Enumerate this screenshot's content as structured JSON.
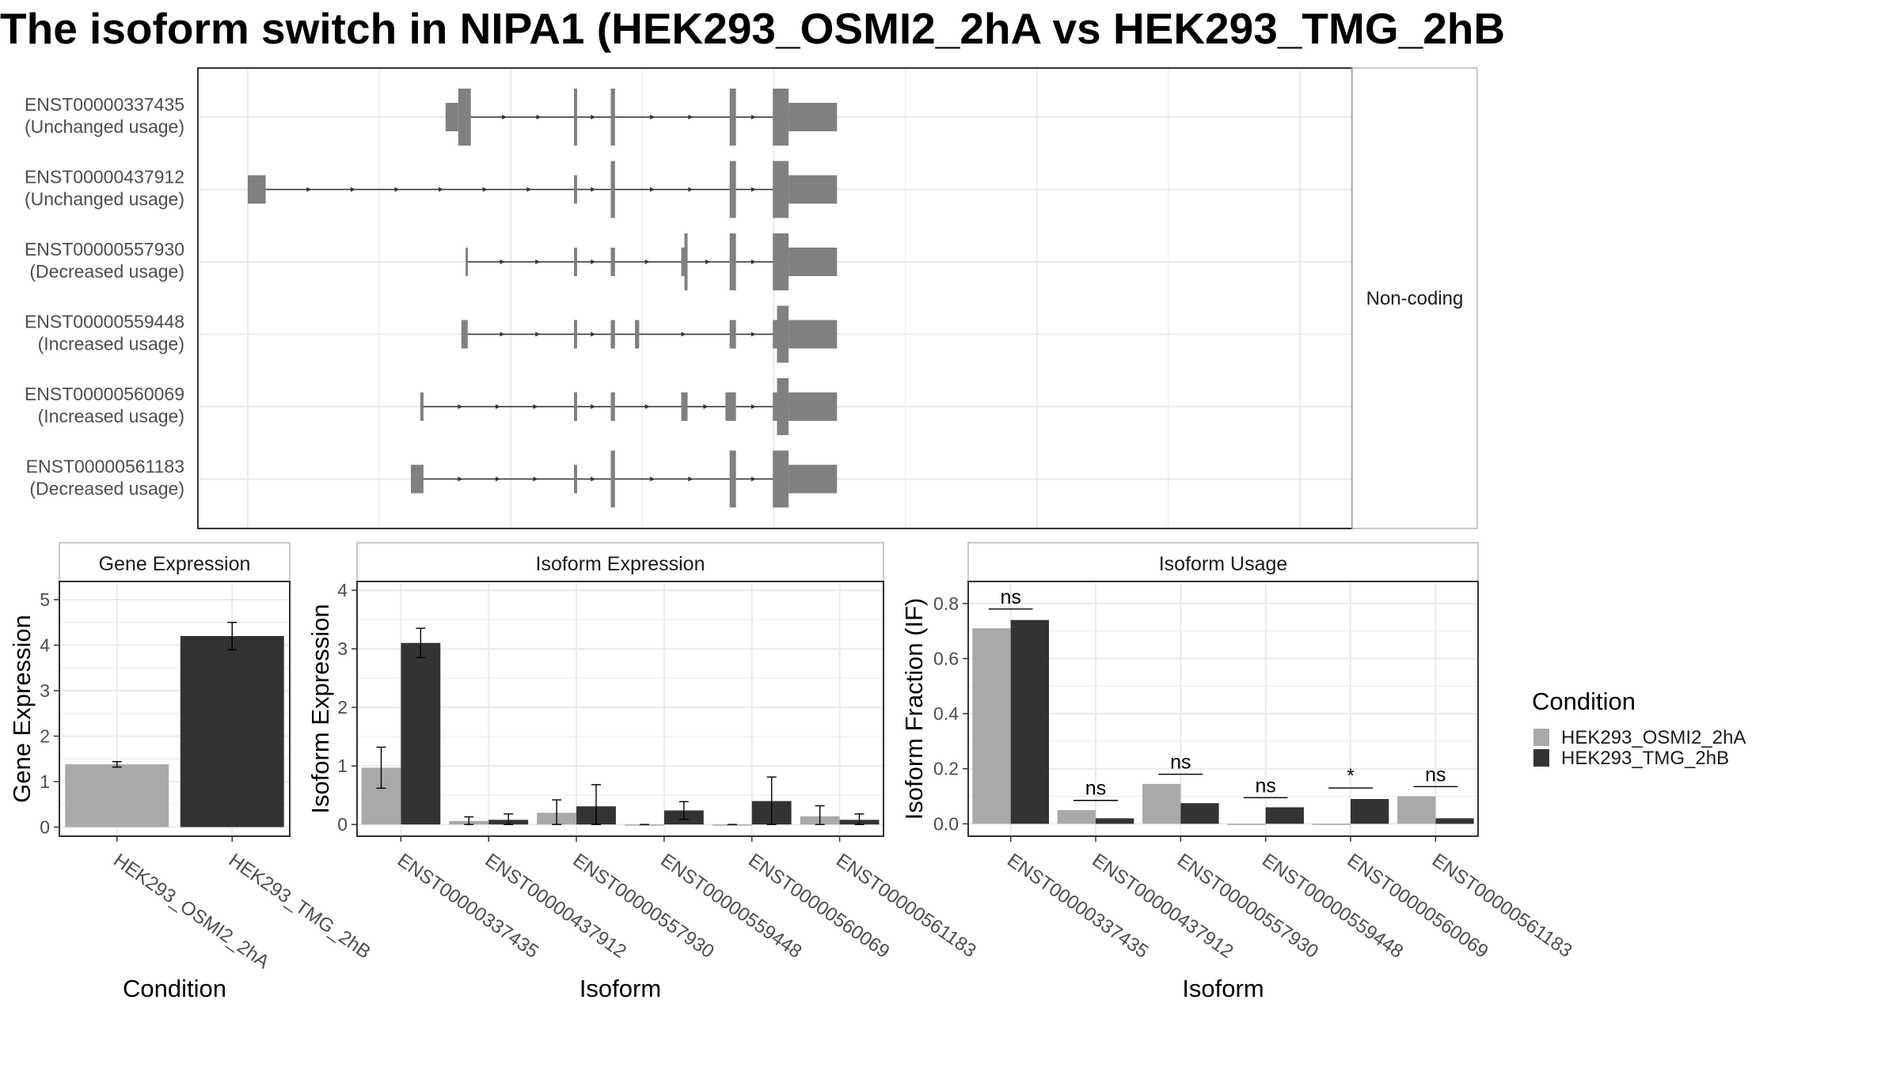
{
  "title": "The isoform switch in NIPA1 (HEK293_OSMI2_2hA vs HEK293_TMG_2hB",
  "colors": {
    "osmi": "#a9a9a9",
    "tmg": "#333333",
    "exon": "#808080",
    "grid": "#ebebeb",
    "panel_border": "#333333"
  },
  "chart_data": [
    {
      "type": "gene-structure",
      "strip_label": "Non-coding",
      "x_range": [
        0,
        1000
      ],
      "transcripts": [
        {
          "id": "ENST00000337435",
          "usage": "(Unchanged usage)",
          "exons": [
            [
              188,
              200,
              "utr"
            ],
            [
              200,
              212,
              "cds"
            ],
            [
              310,
              313,
              "cds"
            ],
            [
              345,
              349,
              "cds"
            ],
            [
              458,
              464,
              "cds"
            ],
            [
              499,
              514,
              "cds"
            ],
            [
              514,
              560,
              "utr"
            ]
          ]
        },
        {
          "id": "ENST00000437912",
          "usage": "(Unchanged usage)",
          "exons": [
            [
              0,
              17,
              "utr"
            ],
            [
              310,
              313,
              "utr"
            ],
            [
              345,
              349,
              "cds"
            ],
            [
              458,
              464,
              "cds"
            ],
            [
              499,
              514,
              "cds"
            ],
            [
              514,
              560,
              "utr"
            ]
          ]
        },
        {
          "id": "ENST00000557930",
          "usage": "(Decreased usage)",
          "exons": [
            [
              207,
              209,
              "utr"
            ],
            [
              310,
              313,
              "utr"
            ],
            [
              345,
              349,
              "utr"
            ],
            [
              412,
              415,
              "utr"
            ],
            [
              415,
              418,
              "cds"
            ],
            [
              458,
              464,
              "cds"
            ],
            [
              499,
              514,
              "cds"
            ],
            [
              514,
              560,
              "utr"
            ]
          ]
        },
        {
          "id": "ENST00000559448",
          "usage": "(Increased usage)",
          "exons": [
            [
              203,
              209,
              "utr"
            ],
            [
              310,
              313,
              "utr"
            ],
            [
              345,
              349,
              "utr"
            ],
            [
              368,
              372,
              "utr"
            ],
            [
              458,
              464,
              "utr"
            ],
            [
              499,
              503,
              "utr"
            ],
            [
              503,
              514,
              "cds"
            ],
            [
              514,
              560,
              "utr"
            ]
          ]
        },
        {
          "id": "ENST00000560069",
          "usage": "(Increased usage)",
          "exons": [
            [
              164,
              167,
              "utr"
            ],
            [
              310,
              313,
              "utr"
            ],
            [
              345,
              349,
              "utr"
            ],
            [
              412,
              418,
              "utr"
            ],
            [
              454,
              459,
              "utr"
            ],
            [
              458,
              464,
              "utr"
            ],
            [
              499,
              503,
              "utr"
            ],
            [
              503,
              514,
              "cds"
            ],
            [
              514,
              560,
              "utr"
            ]
          ]
        },
        {
          "id": "ENST00000561183",
          "usage": "(Decreased usage)",
          "exons": [
            [
              155,
              167,
              "utr"
            ],
            [
              310,
              313,
              "utr"
            ],
            [
              345,
              349,
              "cds"
            ],
            [
              458,
              464,
              "cds"
            ],
            [
              499,
              514,
              "cds"
            ],
            [
              514,
              560,
              "utr"
            ]
          ]
        }
      ]
    },
    {
      "type": "bar",
      "strip_label": "Gene Expression",
      "xlabel": "Condition",
      "ylabel": "Gene Expression",
      "ylim": [
        -0.2,
        5.4
      ],
      "yticks": [
        0,
        1,
        2,
        3,
        4,
        5
      ],
      "categories": [
        "HEK293_OSMI2_2hA",
        "HEK293_TMG_2hB"
      ],
      "series": [
        {
          "values": [
            1.38,
            4.2
          ],
          "errors": [
            [
              1.32,
              1.44
            ],
            [
              3.9,
              4.5
            ]
          ]
        }
      ],
      "grid": true
    },
    {
      "type": "bar",
      "strip_label": "Isoform Expression",
      "xlabel": "Isoform",
      "ylabel": "Isoform Expression",
      "ylim": [
        -0.2,
        4.15
      ],
      "yticks": [
        0,
        1,
        2,
        3,
        4
      ],
      "categories": [
        "ENST00000337435",
        "ENST00000437912",
        "ENST00000557930",
        "ENST00000559448",
        "ENST00000560069",
        "ENST00000561183"
      ],
      "series": [
        {
          "name": "HEK293_OSMI2_2hA",
          "values": [
            0.97,
            0.06,
            0.2,
            0.0,
            0.0,
            0.14
          ],
          "errors": [
            [
              0.62,
              1.32
            ],
            [
              0.0,
              0.13
            ],
            [
              0.0,
              0.42
            ],
            [
              0.0,
              0.0
            ],
            [
              0.0,
              0.0
            ],
            [
              0.0,
              0.32
            ]
          ]
        },
        {
          "name": "HEK293_TMG_2hB",
          "values": [
            3.1,
            0.08,
            0.31,
            0.24,
            0.4,
            0.08
          ],
          "errors": [
            [
              2.85,
              3.35
            ],
            [
              0.0,
              0.18
            ],
            [
              0.0,
              0.68
            ],
            [
              0.09,
              0.39
            ],
            [
              0.0,
              0.81
            ],
            [
              0.0,
              0.18
            ]
          ]
        }
      ],
      "grid": true
    },
    {
      "type": "bar",
      "strip_label": "Isoform Usage",
      "xlabel": "Isoform",
      "ylabel": "Isoform Fraction (IF)",
      "ylim": [
        -0.045,
        0.88
      ],
      "yticks": [
        0.0,
        0.2,
        0.4,
        0.6,
        0.8
      ],
      "categories": [
        "ENST00000337435",
        "ENST00000437912",
        "ENST00000557930",
        "ENST00000559448",
        "ENST00000560069",
        "ENST00000561183"
      ],
      "series": [
        {
          "name": "HEK293_OSMI2_2hA",
          "values": [
            0.71,
            0.05,
            0.145,
            0.0,
            0.0,
            0.1
          ]
        },
        {
          "name": "HEK293_TMG_2hB",
          "values": [
            0.74,
            0.02,
            0.075,
            0.06,
            0.09,
            0.02
          ]
        }
      ],
      "annotations": [
        {
          "text": "ns",
          "y": 0.78
        },
        {
          "text": "ns",
          "y": 0.085
        },
        {
          "text": "ns",
          "y": 0.18
        },
        {
          "text": "ns",
          "y": 0.095
        },
        {
          "text": "*",
          "y": 0.13
        },
        {
          "text": "ns",
          "y": 0.135
        }
      ],
      "grid": true
    }
  ],
  "legend": {
    "title": "Condition",
    "items": [
      "HEK293_OSMI2_2hA",
      "HEK293_TMG_2hB"
    ]
  }
}
